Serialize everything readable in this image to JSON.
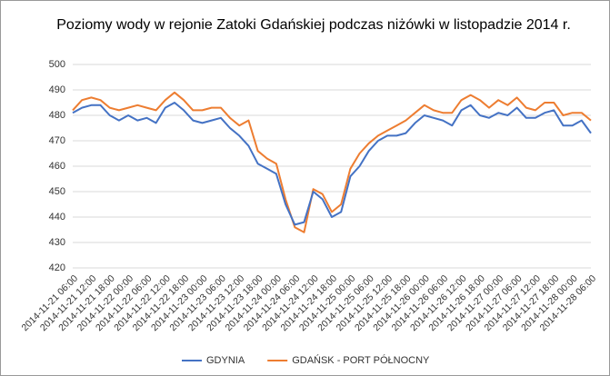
{
  "chart_data": {
    "type": "line",
    "title": "Poziomy wody w rejonie Zatoki Gdańskiej podczas niżówki w listopadzie 2014 r.",
    "categories": [
      "2014-11-21 06:00",
      null,
      "2014-11-21 12:00",
      null,
      "2014-11-21 18:00",
      null,
      "2014-11-22 00:00",
      null,
      "2014-11-22 06:00",
      null,
      "2014-11-22 12:00",
      null,
      "2014-11-22 18:00",
      null,
      "2014-11-23 00:00",
      null,
      "2014-11-23 06:00",
      null,
      "2014-11-23 12:00",
      null,
      "2014-11-23 18:00",
      null,
      "2014-11-24 00:00",
      null,
      "2014-11-24 06:00",
      null,
      "2014-11-24 12:00",
      null,
      "2014-11-24 18:00",
      null,
      "2014-11-25 00:00",
      null,
      "2014-11-25 06:00",
      null,
      "2014-11-25 12:00",
      null,
      "2014-11-25 18:00",
      null,
      "2014-11-26 00:00",
      null,
      "2014-11-26 06:00",
      null,
      "2014-11-26 12:00",
      null,
      "2014-11-26 18:00",
      null,
      "2014-11-27 00:00",
      null,
      "2014-11-27 06:00",
      null,
      "2014-11-27 12:00",
      null,
      "2014-11-27 18:00",
      null,
      "2014-11-28 00:00",
      null,
      "2014-11-28 06:00"
    ],
    "series": [
      {
        "name": "GDYNIA",
        "color": "#4472c4",
        "values": [
          481,
          483,
          484,
          484,
          480,
          478,
          480,
          478,
          479,
          477,
          483,
          485,
          482,
          478,
          477,
          478,
          479,
          475,
          472,
          468,
          461,
          459,
          457,
          445,
          437,
          438,
          450,
          447,
          440,
          442,
          456,
          460,
          466,
          470,
          472,
          472,
          473,
          477,
          480,
          479,
          478,
          476,
          482,
          484,
          480,
          479,
          481,
          480,
          483,
          479,
          479,
          481,
          482,
          476,
          476,
          478,
          473
        ]
      },
      {
        "name": "GDAŃSK - PORT PÓŁNOCNY",
        "color": "#ed7d31",
        "values": [
          482,
          486,
          487,
          486,
          483,
          482,
          483,
          484,
          483,
          482,
          486,
          489,
          486,
          482,
          482,
          483,
          483,
          479,
          476,
          478,
          466,
          463,
          461,
          447,
          436,
          434,
          451,
          449,
          442,
          445,
          459,
          465,
          469,
          472,
          474,
          476,
          478,
          481,
          484,
          482,
          481,
          481,
          486,
          488,
          486,
          483,
          486,
          484,
          487,
          483,
          482,
          485,
          485,
          480,
          481,
          481,
          478
        ]
      }
    ],
    "ylim": [
      420,
      500
    ],
    "yticks": [
      420,
      430,
      440,
      450,
      460,
      470,
      480,
      490,
      500
    ],
    "grid": true,
    "legend": "bottom"
  }
}
